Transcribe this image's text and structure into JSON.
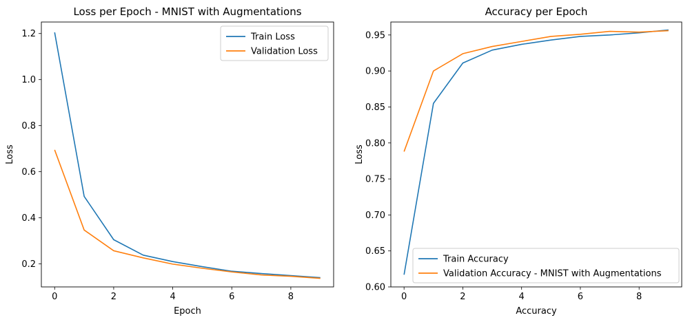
{
  "chart_data": [
    {
      "type": "line",
      "title": "Loss per Epoch - MNIST with Augmentations",
      "xlabel": "Epoch",
      "ylabel": "Loss",
      "x": [
        0,
        1,
        2,
        3,
        4,
        5,
        6,
        7,
        8,
        9
      ],
      "xlim": [
        -0.45,
        9.45
      ],
      "ylim": [
        0.1,
        1.25
      ],
      "xticks": [
        0,
        2,
        4,
        6,
        8
      ],
      "xtick_labels": [
        "0",
        "2",
        "4",
        "6",
        "8"
      ],
      "yticks": [
        0.2,
        0.4,
        0.6,
        0.8,
        1.0,
        1.2
      ],
      "ytick_labels": [
        "0.2",
        "0.4",
        "0.6",
        "0.8",
        "1.0",
        "1.2"
      ],
      "grid": false,
      "legend_position": "top-right",
      "series": [
        {
          "name": "Train Loss",
          "color": "#1f77b4",
          "values": [
            1.205,
            0.493,
            0.305,
            0.238,
            0.21,
            0.188,
            0.168,
            0.158,
            0.149,
            0.14
          ]
        },
        {
          "name": "Validation Loss",
          "color": "#ff7f0e",
          "values": [
            0.695,
            0.347,
            0.257,
            0.226,
            0.199,
            0.181,
            0.165,
            0.152,
            0.146,
            0.137
          ]
        }
      ]
    },
    {
      "type": "line",
      "title": "Accuracy per Epoch",
      "xlabel": "Accuracy",
      "ylabel": "Loss",
      "x": [
        0,
        1,
        2,
        3,
        4,
        5,
        6,
        7,
        8,
        9
      ],
      "xlim": [
        -0.45,
        9.45
      ],
      "ylim": [
        0.6,
        0.968
      ],
      "xticks": [
        0,
        2,
        4,
        6,
        8
      ],
      "xtick_labels": [
        "0",
        "2",
        "4",
        "6",
        "8"
      ],
      "yticks": [
        0.6,
        0.65,
        0.7,
        0.75,
        0.8,
        0.85,
        0.9,
        0.95
      ],
      "ytick_labels": [
        "0.60",
        "0.65",
        "0.70",
        "0.75",
        "0.80",
        "0.85",
        "0.90",
        "0.95"
      ],
      "grid": false,
      "legend_position": "bottom-right",
      "series": [
        {
          "name": "Train Accuracy",
          "color": "#1f77b4",
          "values": [
            0.617,
            0.855,
            0.911,
            0.929,
            0.937,
            0.943,
            0.948,
            0.95,
            0.953,
            0.957
          ]
        },
        {
          "name": "Validation Accuracy - MNIST with Augmentations",
          "color": "#ff7f0e",
          "values": [
            0.788,
            0.9,
            0.924,
            0.934,
            0.941,
            0.948,
            0.951,
            0.955,
            0.954,
            0.956
          ]
        }
      ]
    }
  ]
}
